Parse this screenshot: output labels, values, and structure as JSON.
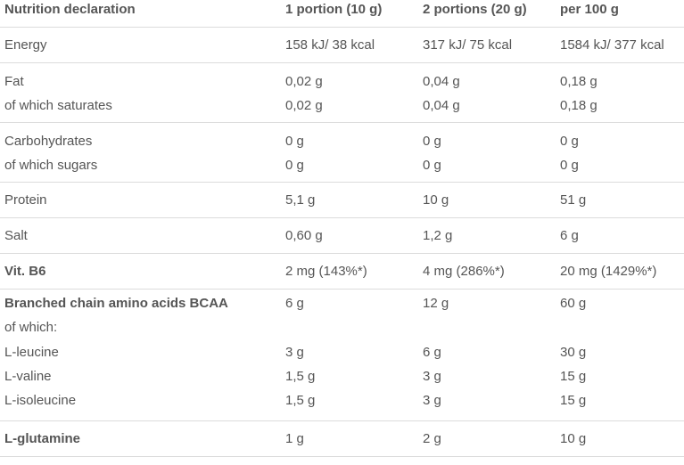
{
  "header": {
    "c1": "Nutrition declaration",
    "c2": "1 portion (10 g)",
    "c3": "2 portions (20 g)",
    "c4": "per 100 g"
  },
  "rows": {
    "energy": [
      "Energy",
      "158 kJ/ 38 kcal",
      "317 kJ/ 75 kcal",
      "1584 kJ/ 377 kcal"
    ],
    "fat": [
      "Fat",
      "0,02 g",
      "0,04 g",
      "0,18 g"
    ],
    "saturates": [
      "of which saturates",
      "0,02 g",
      "0,04 g",
      "0,18 g"
    ],
    "carbs": [
      "Carbohydrates",
      "0 g",
      "0 g",
      "0 g"
    ],
    "sugars": [
      "of which sugars",
      "0 g",
      "0 g",
      "0 g"
    ],
    "protein": [
      "Protein",
      "5,1 g",
      "10 g",
      "51 g"
    ],
    "salt": [
      "Salt",
      "0,60 g",
      "1,2 g",
      "6 g"
    ],
    "b6": [
      "Vit. B6",
      "2 mg (143%*)",
      "4 mg (286%*)",
      "20 mg (1429%*)"
    ],
    "bcaa": [
      "Branched chain amino acids BCAA",
      "6 g",
      "12 g",
      "60 g"
    ],
    "ofwhich": [
      "of which:",
      "",
      "",
      ""
    ],
    "leucine": [
      "L-leucine",
      "3 g",
      "6 g",
      "30 g"
    ],
    "valine": [
      "L-valine",
      "1,5 g",
      "3 g",
      "15 g"
    ],
    "isoleucine": [
      "L-isoleucine",
      "1,5 g",
      "3 g",
      "15 g"
    ],
    "glutamine": [
      "L-glutamine",
      "1 g",
      "2 g",
      "10 g"
    ]
  }
}
